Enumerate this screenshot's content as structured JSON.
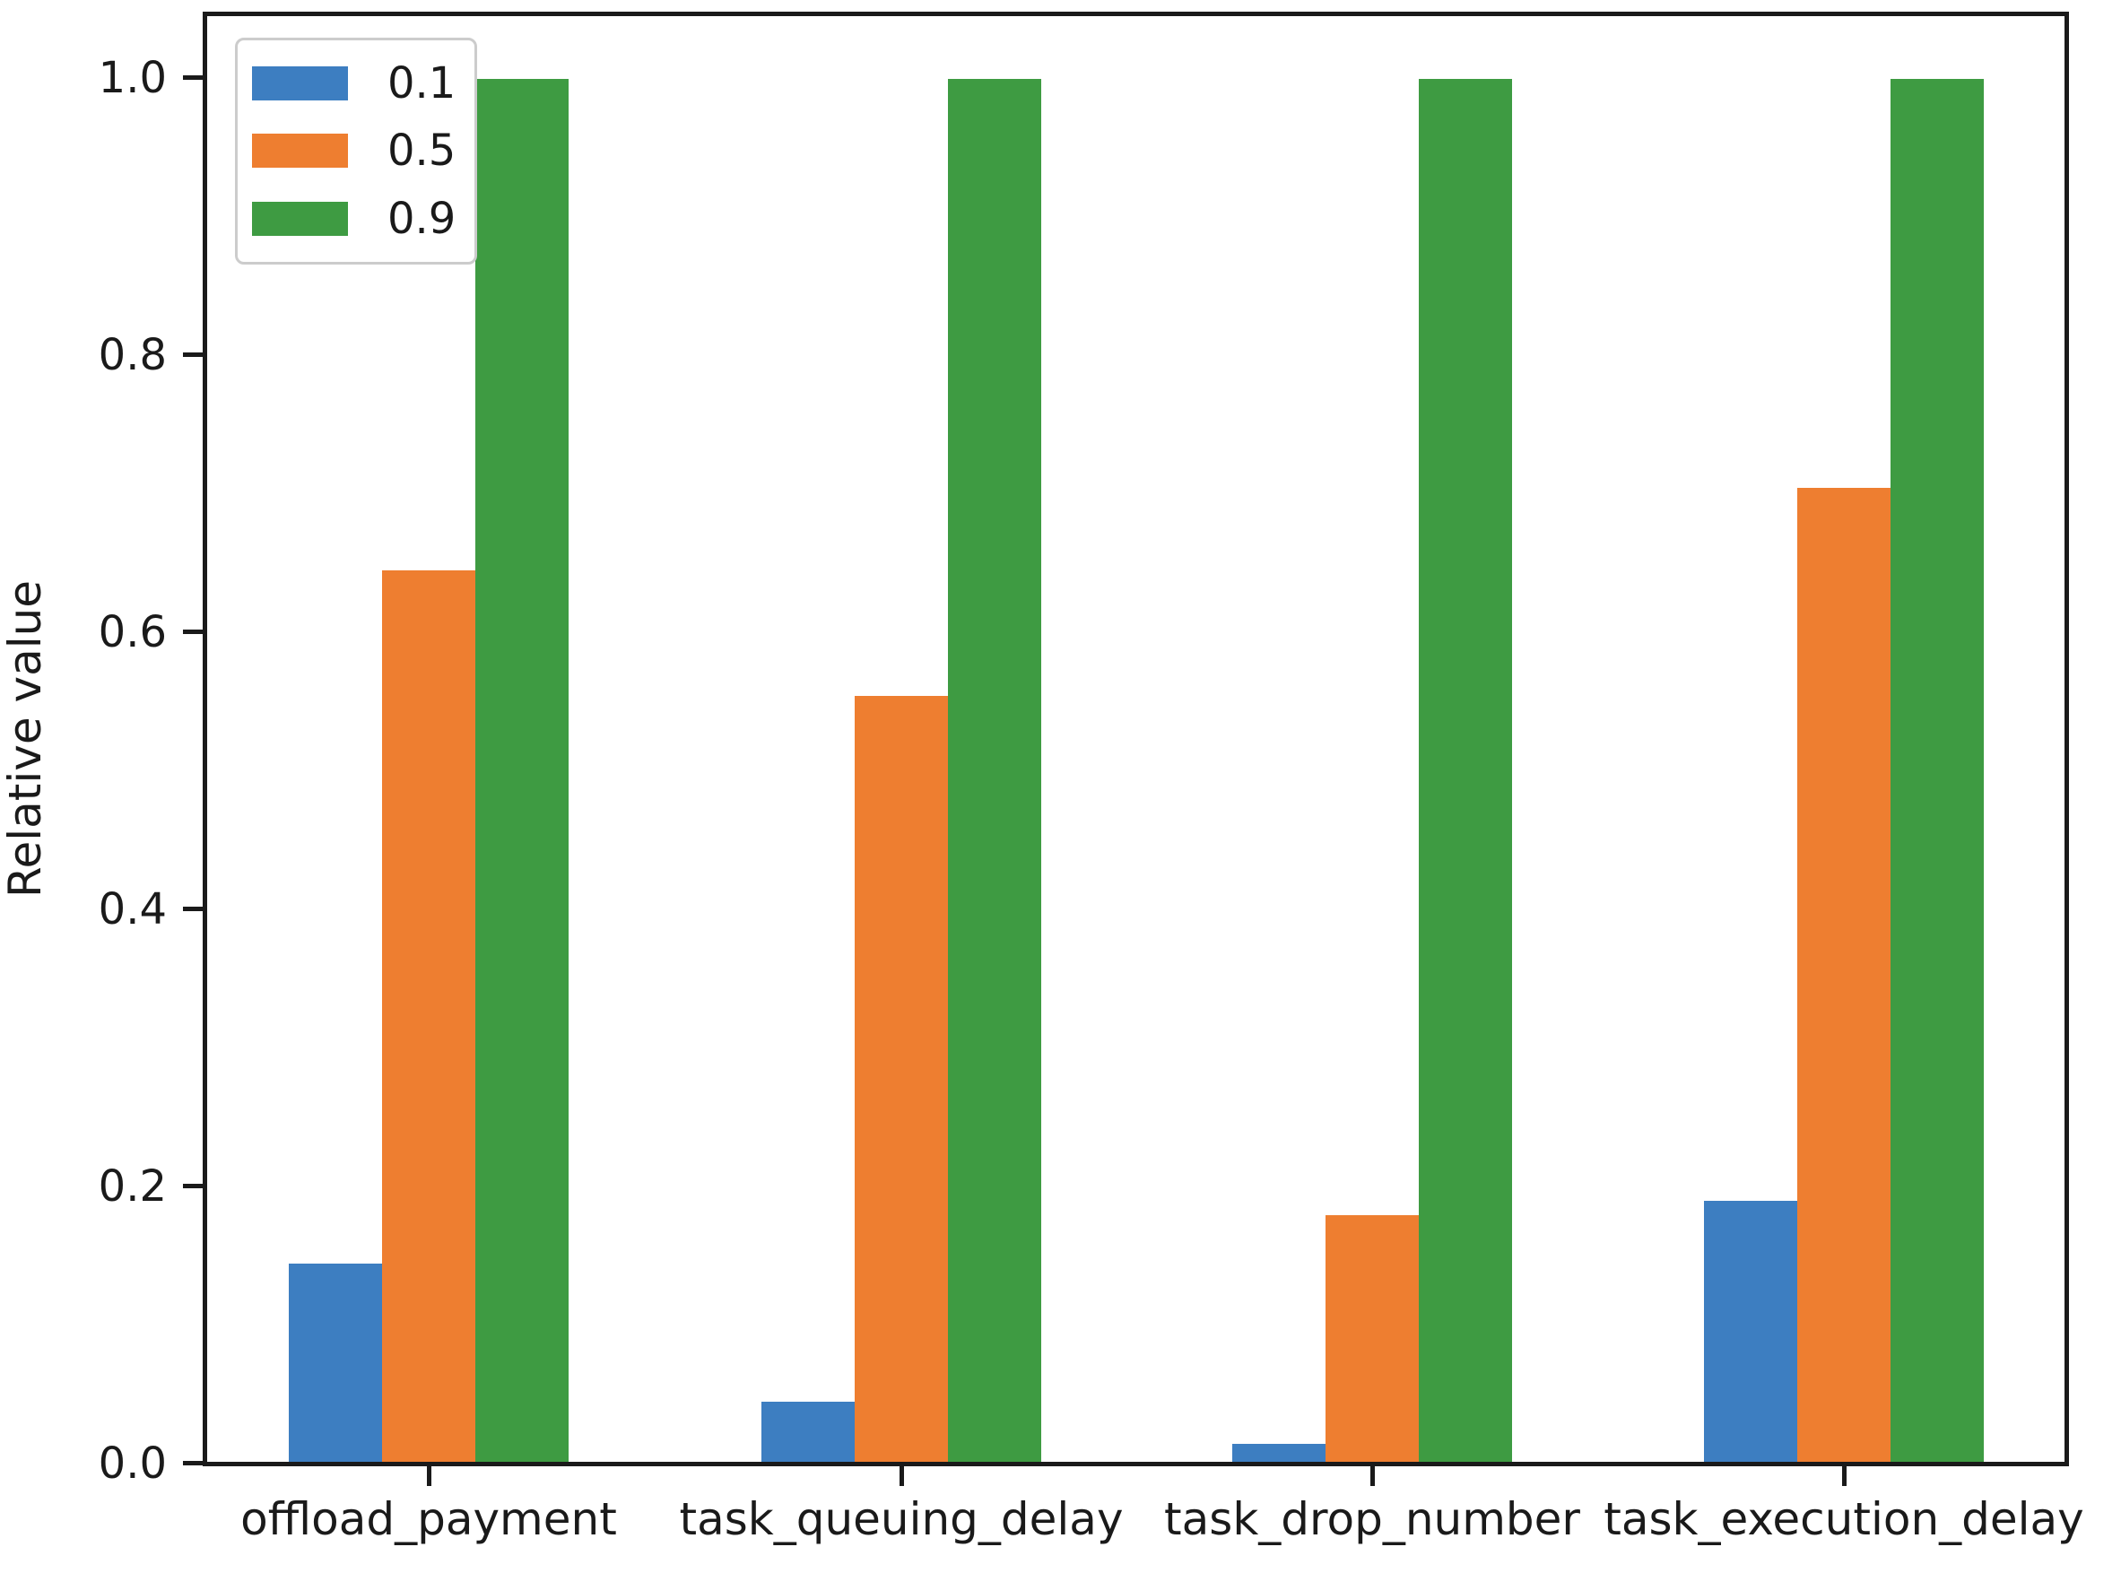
{
  "chart_data": {
    "type": "bar",
    "title": "",
    "xlabel": "",
    "ylabel": "Relative value",
    "categories": [
      "offload_payment",
      "task_queuing_delay",
      "task_drop_number",
      "task_execution_delay"
    ],
    "series": [
      {
        "name": "0.1",
        "color": "#3d7ec1",
        "values": [
          0.145,
          0.045,
          0.015,
          0.19
        ]
      },
      {
        "name": "0.5",
        "color": "#ee7e30",
        "values": [
          0.645,
          0.555,
          0.18,
          0.705
        ]
      },
      {
        "name": "0.9",
        "color": "#3e9b42",
        "values": [
          1.0,
          1.0,
          1.0,
          1.0
        ]
      }
    ],
    "yticks": [
      0.0,
      0.2,
      0.4,
      0.6,
      0.8,
      1.0
    ],
    "ytick_labels": [
      "0.0",
      "0.2",
      "0.4",
      "0.6",
      "0.8",
      "1.0"
    ],
    "ylim": [
      0,
      1.047
    ],
    "grid": false,
    "legend": {
      "position": "upper left",
      "entries": [
        "0.1",
        "0.5",
        "0.9"
      ]
    },
    "axis_color": "#1a1a1a"
  }
}
